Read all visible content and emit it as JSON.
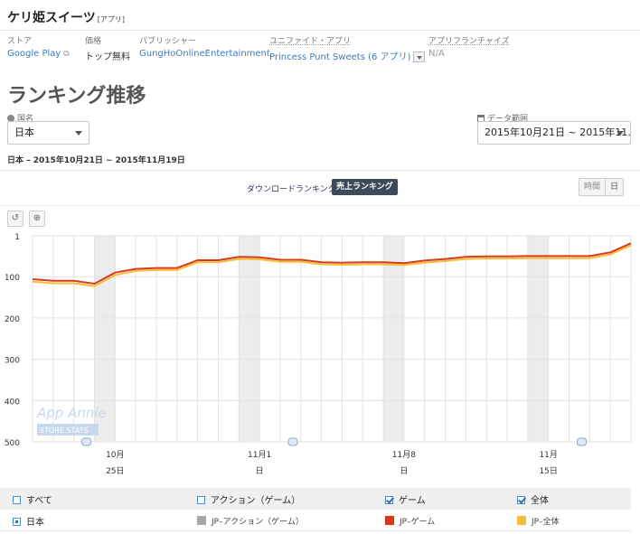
{
  "app": {
    "title": "ケリ姫スイーツ",
    "badge": "[アプリ]"
  },
  "meta": {
    "store": {
      "label": "ストア",
      "value": "Google Play"
    },
    "price": {
      "label": "価格",
      "value": "トップ無料"
    },
    "publisher": {
      "label": "パブリッシャー",
      "value": "GungHoOnlineEntertainment"
    },
    "unified": {
      "label": "ユニファイド・アプリ",
      "value": "Princess Punt Sweets (6 アプリ)"
    },
    "franchise": {
      "label": "アプリフランチャイズ",
      "value": "N/A"
    }
  },
  "section_title": "ランキング推移",
  "country": {
    "label": "国名",
    "value": "日本"
  },
  "date_range": {
    "label": "データ範囲",
    "value": "2015年10月21日 ~ 2015年11…"
  },
  "range_text": "日本 – 2015年10月21日 ~ 2015年11月19日",
  "tabs": {
    "download": "ダウンロードランキング",
    "sales": "売上ランキング"
  },
  "granularity": {
    "hour": "時間",
    "day": "日"
  },
  "tools": {
    "reset": "↺",
    "zoom": "⊕"
  },
  "colors": {
    "game": "#d83b1c",
    "overall": "#f6bd3a",
    "weekend": "#ececec",
    "grid": "#e2e2e2",
    "accent": "#3d4a5a"
  },
  "icons": [
    "external-link-icon",
    "globe-icon",
    "calendar-icon",
    "reset-icon",
    "zoom-icon",
    "annotation-icon"
  ],
  "watermark": {
    "line1": "App Annie",
    "line2": "STORE STATS"
  },
  "chart_data": {
    "type": "line",
    "ylim": [
      1,
      500
    ],
    "y_inverted": true,
    "yticks": [
      "1",
      "100",
      "200",
      "300",
      "400",
      "500"
    ],
    "x_dates": [
      "10-21",
      "10-22",
      "10-23",
      "10-24",
      "10-25",
      "10-26",
      "10-27",
      "10-28",
      "10-29",
      "10-30",
      "10-31",
      "11-01",
      "11-02",
      "11-03",
      "11-04",
      "11-05",
      "11-06",
      "11-07",
      "11-08",
      "11-09",
      "11-10",
      "11-11",
      "11-12",
      "11-13",
      "11-14",
      "11-15",
      "11-16",
      "11-17",
      "11-18",
      "11-19"
    ],
    "x_tick_labels": [
      {
        "date": "10-25",
        "top": "10月",
        "bottom": "25日"
      },
      {
        "date": "11-01",
        "top": "11月1",
        "bottom": "日"
      },
      {
        "date": "11-08",
        "top": "11月8",
        "bottom": "日"
      },
      {
        "date": "11-15",
        "top": "11月",
        "bottom": "15日"
      }
    ],
    "weekend_bands": [
      [
        "10-24",
        "10-25"
      ],
      [
        "10-31",
        "11-01"
      ],
      [
        "11-07",
        "11-08"
      ],
      [
        "11-14",
        "11-15"
      ]
    ],
    "annotations": [
      "10-23",
      "11-02",
      "11-16"
    ],
    "series": [
      {
        "name": "JP–全体",
        "color": "#f6bd3a",
        "values": [
          112,
          116,
          116,
          123,
          96,
          86,
          84,
          84,
          65,
          65,
          57,
          58,
          64,
          64,
          70,
          71,
          70,
          70,
          72,
          66,
          62,
          57,
          56,
          56,
          55,
          55,
          55,
          55,
          46,
          24
        ]
      },
      {
        "name": "JP–ゲーム",
        "color": "#d83b1c",
        "values": [
          106,
          110,
          110,
          117,
          90,
          81,
          79,
          79,
          60,
          60,
          52,
          53,
          59,
          59,
          65,
          66,
          65,
          65,
          67,
          61,
          57,
          52,
          51,
          51,
          50,
          50,
          50,
          50,
          41,
          19
        ]
      }
    ]
  },
  "legend": {
    "row1": [
      {
        "label": "すべて",
        "checked": false
      },
      {
        "label": "アクション（ゲーム）",
        "checked": false
      },
      {
        "label": "ゲーム",
        "checked": true
      },
      {
        "label": "全体",
        "checked": true
      }
    ],
    "row2": [
      {
        "label": "日本"
      },
      {
        "label": "JP–アクション（ゲーム）",
        "color": "#a8a8a8"
      },
      {
        "label": "JP–ゲーム",
        "color": "#d83b1c"
      },
      {
        "label": "JP–全体",
        "color": "#f6bd3a"
      }
    ]
  }
}
